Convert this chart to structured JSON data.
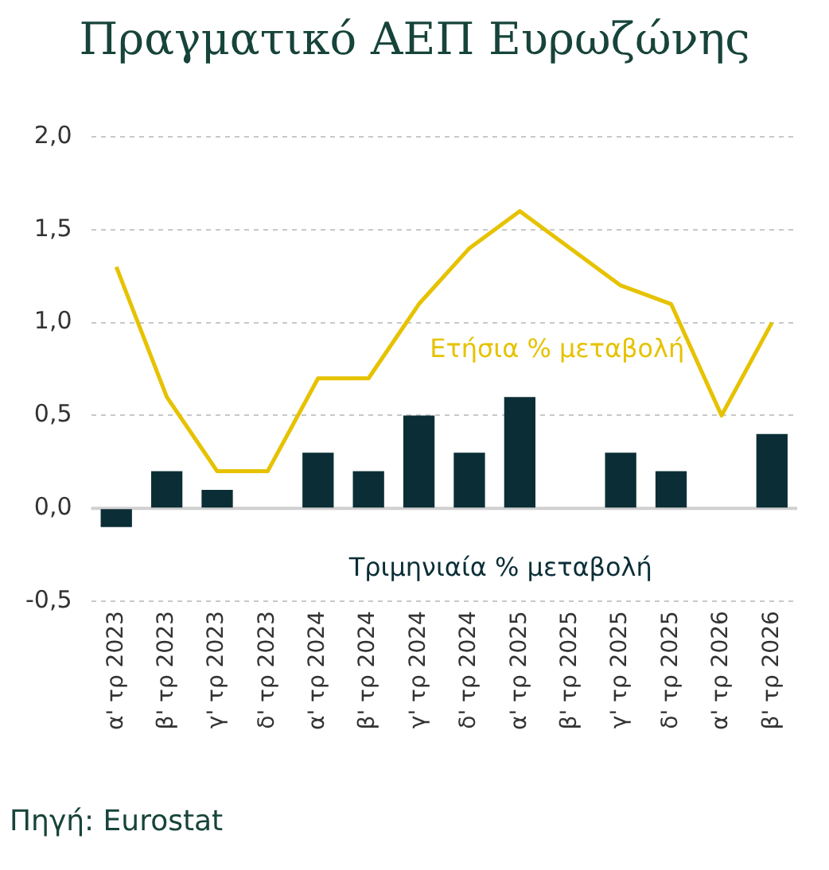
{
  "chart_data": {
    "type": "bar",
    "title": "Πραγματικό ΑΕΠ Ευρωζώνης",
    "categories": [
      "α' τρ 2023",
      "β' τρ 2023",
      "γ' τρ 2023",
      "δ' τρ 2023",
      "α' τρ 2024",
      "β' τρ 2024",
      "γ' τρ 2024",
      "δ' τρ 2024",
      "α' τρ 2025",
      "β' τρ 2025",
      "γ' τρ 2025",
      "δ' τρ 2025",
      "α' τρ 2026",
      "β' τρ 2026"
    ],
    "series": [
      {
        "name": "Τριμηνιαία % μεταβολή",
        "type": "bar",
        "color": "#0b2e36",
        "values": [
          -0.1,
          0.2,
          0.1,
          0,
          0.3,
          0.2,
          0.5,
          0.3,
          0.6,
          0,
          0.3,
          0.2,
          0,
          0.4
        ]
      },
      {
        "name": "Ετήσια % μεταβολή",
        "type": "line",
        "color": "#e6c200",
        "values": [
          1.3,
          0.6,
          0.2,
          0.2,
          0.7,
          0.7,
          1.1,
          1.4,
          1.6,
          1.4,
          1.2,
          1.1,
          0.5,
          1.0
        ]
      }
    ],
    "ylim": [
      -0.5,
      2.0
    ],
    "yticks": [
      {
        "value": -0.5,
        "label": "-0,5"
      },
      {
        "value": 0,
        "label": "0,0"
      },
      {
        "value": 0.5,
        "label": "0,5"
      },
      {
        "value": 1,
        "label": "1,0"
      },
      {
        "value": 1.5,
        "label": "1,5"
      },
      {
        "value": 2,
        "label": "2,0"
      }
    ],
    "grid": "y",
    "legend": false,
    "marker": "none",
    "annotations": [
      "Πηγή: Eurostat"
    ]
  }
}
